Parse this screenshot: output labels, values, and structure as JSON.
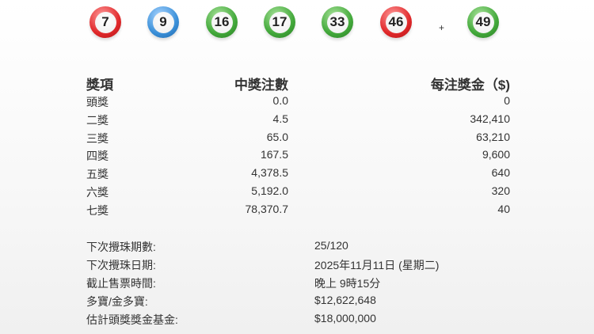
{
  "balls": [
    {
      "number": "7",
      "color": "red"
    },
    {
      "number": "9",
      "color": "blue"
    },
    {
      "number": "16",
      "color": "green"
    },
    {
      "number": "17",
      "color": "green"
    },
    {
      "number": "33",
      "color": "green"
    },
    {
      "number": "46",
      "color": "red"
    },
    {
      "number": "49",
      "color": "green"
    }
  ],
  "plus": "+",
  "prize_table": {
    "headers": [
      "獎項",
      "中獎注數",
      "每注獎金（$)"
    ],
    "rows": [
      [
        "頭獎",
        "0.0",
        "0"
      ],
      [
        "二獎",
        "4.5",
        "342,410"
      ],
      [
        "三獎",
        "65.0",
        "63,210"
      ],
      [
        "四獎",
        "167.5",
        "9,600"
      ],
      [
        "五獎",
        "4,378.5",
        "640"
      ],
      [
        "六獎",
        "5,192.0",
        "320"
      ],
      [
        "七獎",
        "78,370.7",
        "40"
      ]
    ]
  },
  "info": [
    {
      "label": "下次攪珠期數:",
      "value": "25/120"
    },
    {
      "label": "下次攪珠日期:",
      "value": "2025年11月11日 (星期二)"
    },
    {
      "label": "截止售票時間:",
      "value": "晚上 9時15分"
    },
    {
      "label": "多寶/金多寶:",
      "value": "$12,622,648"
    },
    {
      "label": "估計頭獎獎金基金:",
      "value": "$18,000,000"
    }
  ]
}
